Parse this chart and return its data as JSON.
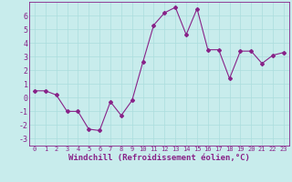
{
  "x": [
    0,
    1,
    2,
    3,
    4,
    5,
    6,
    7,
    8,
    9,
    10,
    11,
    12,
    13,
    14,
    15,
    16,
    17,
    18,
    19,
    20,
    21,
    22,
    23
  ],
  "y": [
    0.5,
    0.5,
    0.2,
    -1.0,
    -1.0,
    -2.3,
    -2.4,
    -0.3,
    -1.3,
    -0.2,
    2.6,
    5.3,
    6.2,
    6.6,
    4.6,
    6.5,
    3.5,
    3.5,
    1.4,
    3.4,
    3.4,
    2.5,
    3.1,
    3.3
  ],
  "line_color": "#882288",
  "marker": "D",
  "markersize": 2,
  "background_color": "#c8ecec",
  "grid_color": "#aadddd",
  "xlim": [
    -0.5,
    23.5
  ],
  "ylim": [
    -3.5,
    7.0
  ],
  "yticks": [
    -3,
    -2,
    -1,
    0,
    1,
    2,
    3,
    4,
    5,
    6
  ],
  "xticks": [
    0,
    1,
    2,
    3,
    4,
    5,
    6,
    7,
    8,
    9,
    10,
    11,
    12,
    13,
    14,
    15,
    16,
    17,
    18,
    19,
    20,
    21,
    22,
    23
  ],
  "xlabel": "Windchill (Refroidissement éolien,°C)",
  "tick_color": "#882288",
  "label_color": "#882288",
  "axis_color": "#882288",
  "xlabel_fontsize": 6.5,
  "xtick_fontsize": 5.0,
  "ytick_fontsize": 6.0
}
